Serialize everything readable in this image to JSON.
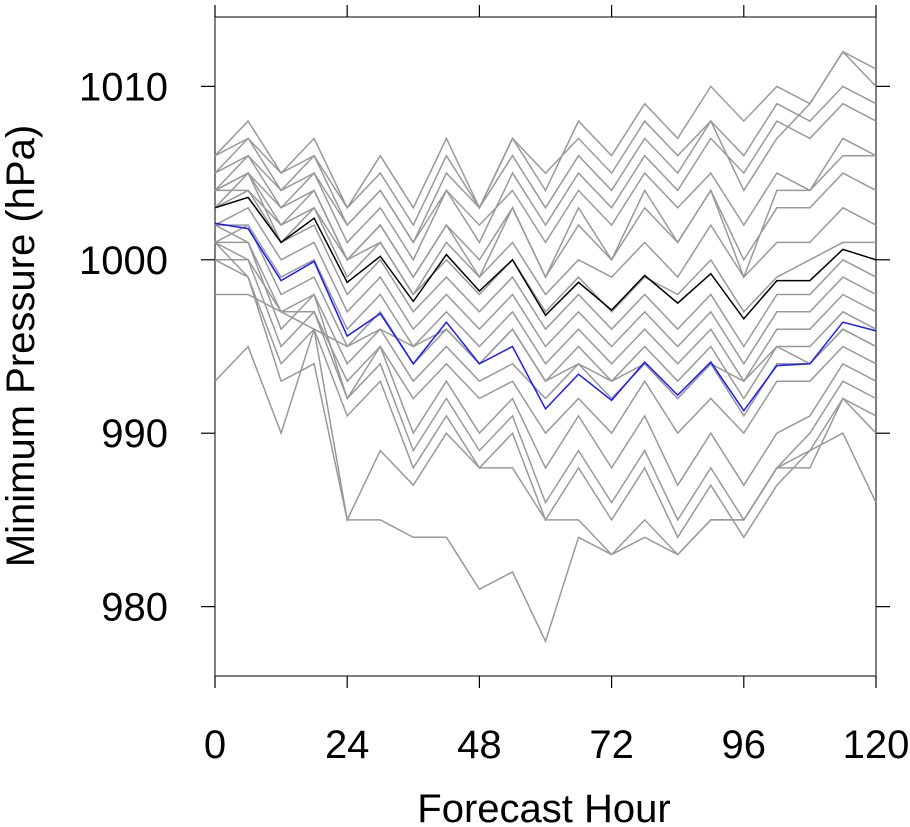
{
  "chart_data": {
    "type": "line",
    "title": "",
    "xlabel": "Forecast Hour",
    "ylabel": "Minimum Pressure (hPa)",
    "xlim": [
      0,
      120
    ],
    "ylim": [
      976,
      1014
    ],
    "xticks": [
      0,
      24,
      48,
      72,
      96,
      120
    ],
    "yticks": [
      980,
      990,
      1000,
      1010
    ],
    "x": [
      0,
      6,
      12,
      18,
      24,
      30,
      36,
      42,
      48,
      54,
      60,
      66,
      72,
      78,
      84,
      90,
      96,
      102,
      108,
      114,
      120
    ],
    "colors": {
      "ensemble": "#999999",
      "mean": "#000000",
      "highlight": "#1a1aff",
      "axis": "#000000",
      "frame": "#555555"
    },
    "series": [
      {
        "values": [
          1003.0,
          1003.6,
          1001.0,
          1002.4,
          998.7,
          1000.2,
          997.6,
          1000.3,
          998.2,
          1000.0,
          996.8,
          998.7,
          997.1,
          999.1,
          997.5,
          999.2,
          996.6,
          998.8,
          998.8,
          1000.6,
          1000.0
        ]
      },
      {
        "values": [
          1002.1,
          1001.8,
          998.8,
          999.9,
          995.6,
          996.9,
          994.0,
          996.4,
          994.0,
          995.0,
          991.4,
          993.4,
          991.9,
          994.1,
          992.2,
          994.1,
          991.3,
          993.9,
          994.0,
          996.4,
          995.9
        ]
      },
      {
        "values": [
          1006,
          1008,
          1005,
          1007,
          1003,
          1005,
          1002,
          1006,
          1003,
          1007,
          1004,
          1008,
          1006,
          1009,
          1007,
          1010,
          1008,
          1010,
          1009,
          1012,
          1011
        ]
      },
      {
        "values": [
          1005,
          1007,
          1004,
          1006,
          1002,
          1004,
          1001,
          1005,
          1003,
          1006,
          1003,
          1006,
          1004,
          1007,
          1005,
          1008,
          1006,
          1009,
          1008,
          1010,
          1009
        ]
      },
      {
        "values": [
          1004,
          1006,
          1003,
          1005,
          1001,
          1003,
          1000,
          1004,
          1001,
          1005,
          1002,
          1005,
          1003,
          1006,
          1004,
          1007,
          1005,
          1008,
          1007,
          1009,
          1008
        ]
      },
      {
        "values": [
          1005,
          1006,
          1004,
          1005,
          1002,
          1004,
          1001,
          1004,
          1002,
          1004,
          1001,
          1004,
          1002,
          1005,
          1003,
          1005,
          1002,
          1005,
          1004,
          1006,
          1006
        ]
      },
      {
        "values": [
          1004,
          1005,
          1002,
          1004,
          1000,
          1002,
          999,
          1002,
          1000,
          1003,
          999,
          1002,
          1000,
          1003,
          1001,
          1004,
          1000,
          1003,
          1003,
          1005,
          1004
        ]
      },
      {
        "values": [
          1003,
          1005,
          1001,
          1003,
          999,
          1001,
          998,
          1001,
          999,
          1001,
          998,
          1000,
          999,
          1001,
          999,
          1002,
          999,
          1001,
          1001,
          1003,
          1002
        ]
      },
      {
        "values": [
          1004,
          1004,
          1002,
          1003,
          1000,
          1001,
          998,
          1000,
          998,
          1000,
          997,
          999,
          997,
          999,
          998,
          1000,
          997,
          999,
          1000,
          1001,
          1001
        ]
      },
      {
        "values": [
          1003,
          1004,
          1001,
          1002,
          998,
          1000,
          997,
          999,
          997,
          999,
          996,
          998,
          996,
          998,
          996,
          998,
          995,
          998,
          998,
          1000,
          999
        ]
      },
      {
        "values": [
          1002,
          1003,
          1000,
          1001,
          997,
          999,
          996,
          998,
          996,
          998,
          995,
          997,
          995,
          997,
          995,
          997,
          994,
          997,
          997,
          999,
          998
        ]
      },
      {
        "values": [
          1002,
          1002,
          999,
          1000,
          996,
          998,
          995,
          997,
          995,
          997,
          994,
          996,
          994,
          996,
          994,
          996,
          993,
          996,
          996,
          998,
          997
        ]
      },
      {
        "values": [
          1001,
          1002,
          998,
          999,
          995,
          997,
          994,
          996,
          994,
          996,
          993,
          995,
          993,
          995,
          993,
          995,
          992,
          995,
          995,
          997,
          996
        ]
      },
      {
        "values": [
          1001,
          1001,
          997,
          998,
          994,
          996,
          993,
          995,
          993,
          994,
          992,
          994,
          992,
          994,
          992,
          994,
          991,
          994,
          994,
          996,
          995
        ]
      },
      {
        "values": [
          1000,
          1000,
          997,
          997,
          993,
          995,
          992,
          994,
          992,
          993,
          990,
          992,
          990,
          993,
          990,
          992,
          990,
          993,
          993,
          995,
          994
        ]
      },
      {
        "values": [
          1002,
          1001,
          996,
          998,
          992,
          995,
          990,
          993,
          990,
          992,
          988,
          991,
          988,
          991,
          987,
          990,
          987,
          990,
          991,
          994,
          993
        ]
      },
      {
        "values": [
          1001,
          1000,
          995,
          997,
          992,
          994,
          989,
          992,
          989,
          991,
          986,
          989,
          986,
          989,
          985,
          988,
          985,
          988,
          990,
          993,
          992
        ]
      },
      {
        "values": [
          1000,
          999,
          994,
          996,
          991,
          993,
          988,
          991,
          988,
          990,
          985,
          988,
          985,
          988,
          984,
          987,
          984,
          987,
          989,
          990,
          986
        ]
      },
      {
        "values": [
          993,
          995,
          990,
          996,
          985,
          985,
          984,
          984,
          981,
          982,
          978,
          984,
          983,
          985,
          983,
          985,
          985,
          988,
          988,
          992,
          991
        ]
      },
      {
        "values": [
          1001,
          999,
          993,
          994,
          985,
          989,
          987,
          990,
          988,
          988,
          985,
          985,
          983,
          984,
          983,
          985,
          985,
          988,
          989,
          992,
          990
        ]
      },
      {
        "values": [
          998,
          998,
          997,
          996,
          995,
          996,
          995,
          996,
          994,
          996,
          993,
          994,
          993,
          994,
          992,
          994,
          993,
          995,
          994,
          996,
          995
        ]
      },
      {
        "values": [
          1004,
          1005,
          1003,
          1004,
          1000,
          1002,
          999,
          1002,
          999,
          1003,
          999,
          1003,
          1000,
          1004,
          1001,
          1004,
          999,
          1004,
          1004,
          1007,
          1006
        ]
      },
      {
        "values": [
          1006,
          1007,
          1005,
          1006,
          1003,
          1006,
          1003,
          1007,
          1003,
          1007,
          1005,
          1007,
          1005,
          1008,
          1006,
          1008,
          1004,
          1007,
          1009,
          1012,
          1010
        ]
      }
    ]
  }
}
